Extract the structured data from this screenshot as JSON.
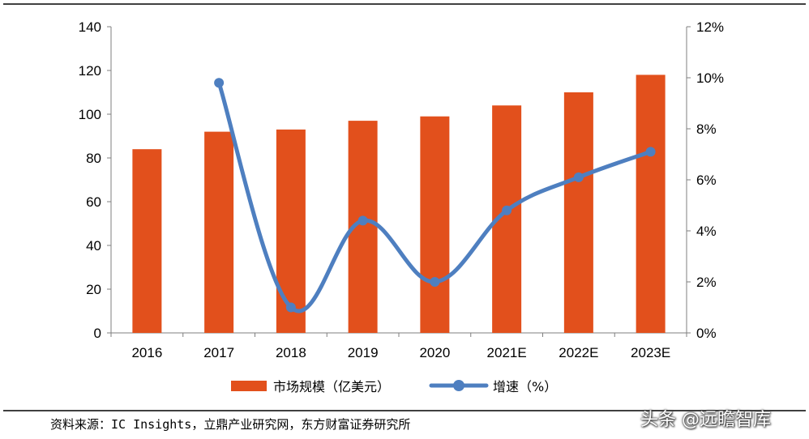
{
  "chart_data": {
    "type": "bar",
    "categories": [
      "2016",
      "2017",
      "2018",
      "2019",
      "2020",
      "2021E",
      "2022E",
      "2023E"
    ],
    "series": [
      {
        "name": "市场规模（亿美元）",
        "type": "bar",
        "axis": "left",
        "color": "#E2501C",
        "values": [
          84,
          92,
          93,
          97,
          99,
          104,
          110,
          118
        ]
      },
      {
        "name": "增速（%）",
        "type": "line",
        "axis": "right",
        "color": "#4E7FC0",
        "values": [
          null,
          9.8,
          1.0,
          4.4,
          2.0,
          4.8,
          6.1,
          7.1
        ]
      }
    ],
    "y_left": {
      "min": 0,
      "max": 140,
      "ticks": [
        "0",
        "20",
        "40",
        "60",
        "80",
        "100",
        "120",
        "140"
      ]
    },
    "y_right": {
      "min": 0,
      "max": 12,
      "ticks": [
        "0%",
        "2%",
        "4%",
        "6%",
        "8%",
        "10%",
        "12%"
      ]
    },
    "legend_position": "bottom",
    "grid": false
  },
  "source": "资料来源：IC Insights，立鼎产业研究网，东方财富证券研究所",
  "watermark": "头条 @远瞻智库"
}
